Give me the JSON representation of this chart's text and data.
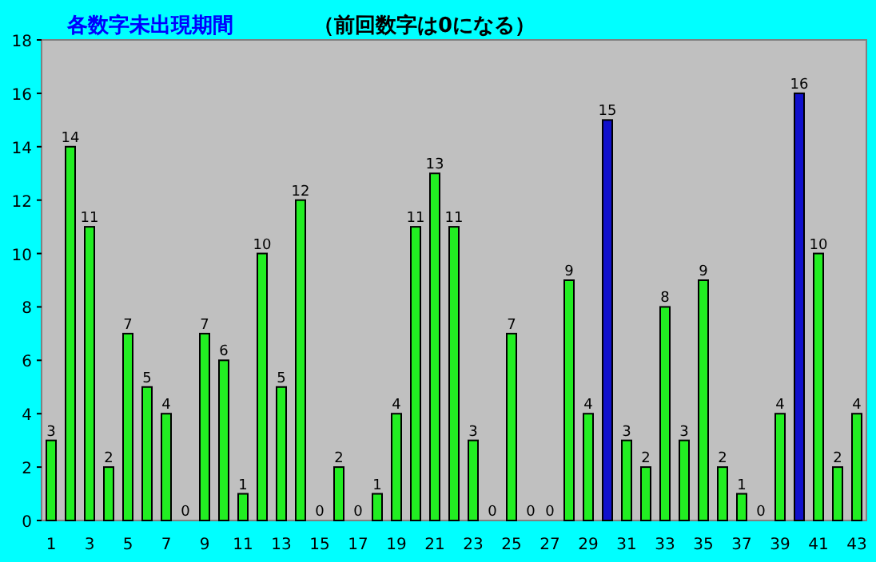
{
  "chart_data": {
    "type": "bar",
    "title": "各数字未出現期間",
    "subtitle": "（前回数字は0になる）",
    "categories": [
      "1",
      null,
      "3",
      null,
      "5",
      null,
      "7",
      null,
      "9",
      null,
      "11",
      null,
      "13",
      null,
      "15",
      null,
      "17",
      null,
      "19",
      null,
      "21",
      null,
      "23",
      null,
      "25",
      null,
      "27",
      null,
      "29",
      null,
      "31",
      null,
      "33",
      null,
      "35",
      null,
      "37",
      null,
      "39",
      null,
      "41",
      null,
      "43"
    ],
    "values": [
      3,
      14,
      11,
      2,
      7,
      5,
      4,
      0,
      7,
      6,
      1,
      10,
      5,
      12,
      0,
      2,
      0,
      1,
      4,
      11,
      13,
      11,
      3,
      0,
      7,
      0,
      0,
      9,
      4,
      15,
      3,
      2,
      8,
      3,
      9,
      2,
      1,
      0,
      4,
      16,
      10,
      2,
      4
    ],
    "colors": [
      "#22ee22",
      "#22ee22",
      "#22ee22",
      "#22ee22",
      "#22ee22",
      "#22ee22",
      "#22ee22",
      "#22ee22",
      "#22ee22",
      "#22ee22",
      "#22ee22",
      "#22ee22",
      "#22ee22",
      "#22ee22",
      "#22ee22",
      "#22ee22",
      "#22ee22",
      "#22ee22",
      "#22ee22",
      "#22ee22",
      "#22ee22",
      "#22ee22",
      "#22ee22",
      "#22ee22",
      "#22ee22",
      "#22ee22",
      "#22ee22",
      "#22ee22",
      "#22ee22",
      "#1010cc",
      "#22ee22",
      "#22ee22",
      "#22ee22",
      "#22ee22",
      "#22ee22",
      "#22ee22",
      "#22ee22",
      "#22ee22",
      "#22ee22",
      "#1010cc",
      "#22ee22",
      "#22ee22",
      "#22ee22"
    ],
    "ylim": [
      0,
      18
    ],
    "yticks": [
      0,
      2,
      4,
      6,
      8,
      10,
      12,
      14,
      16,
      18
    ],
    "data_labels": true
  }
}
